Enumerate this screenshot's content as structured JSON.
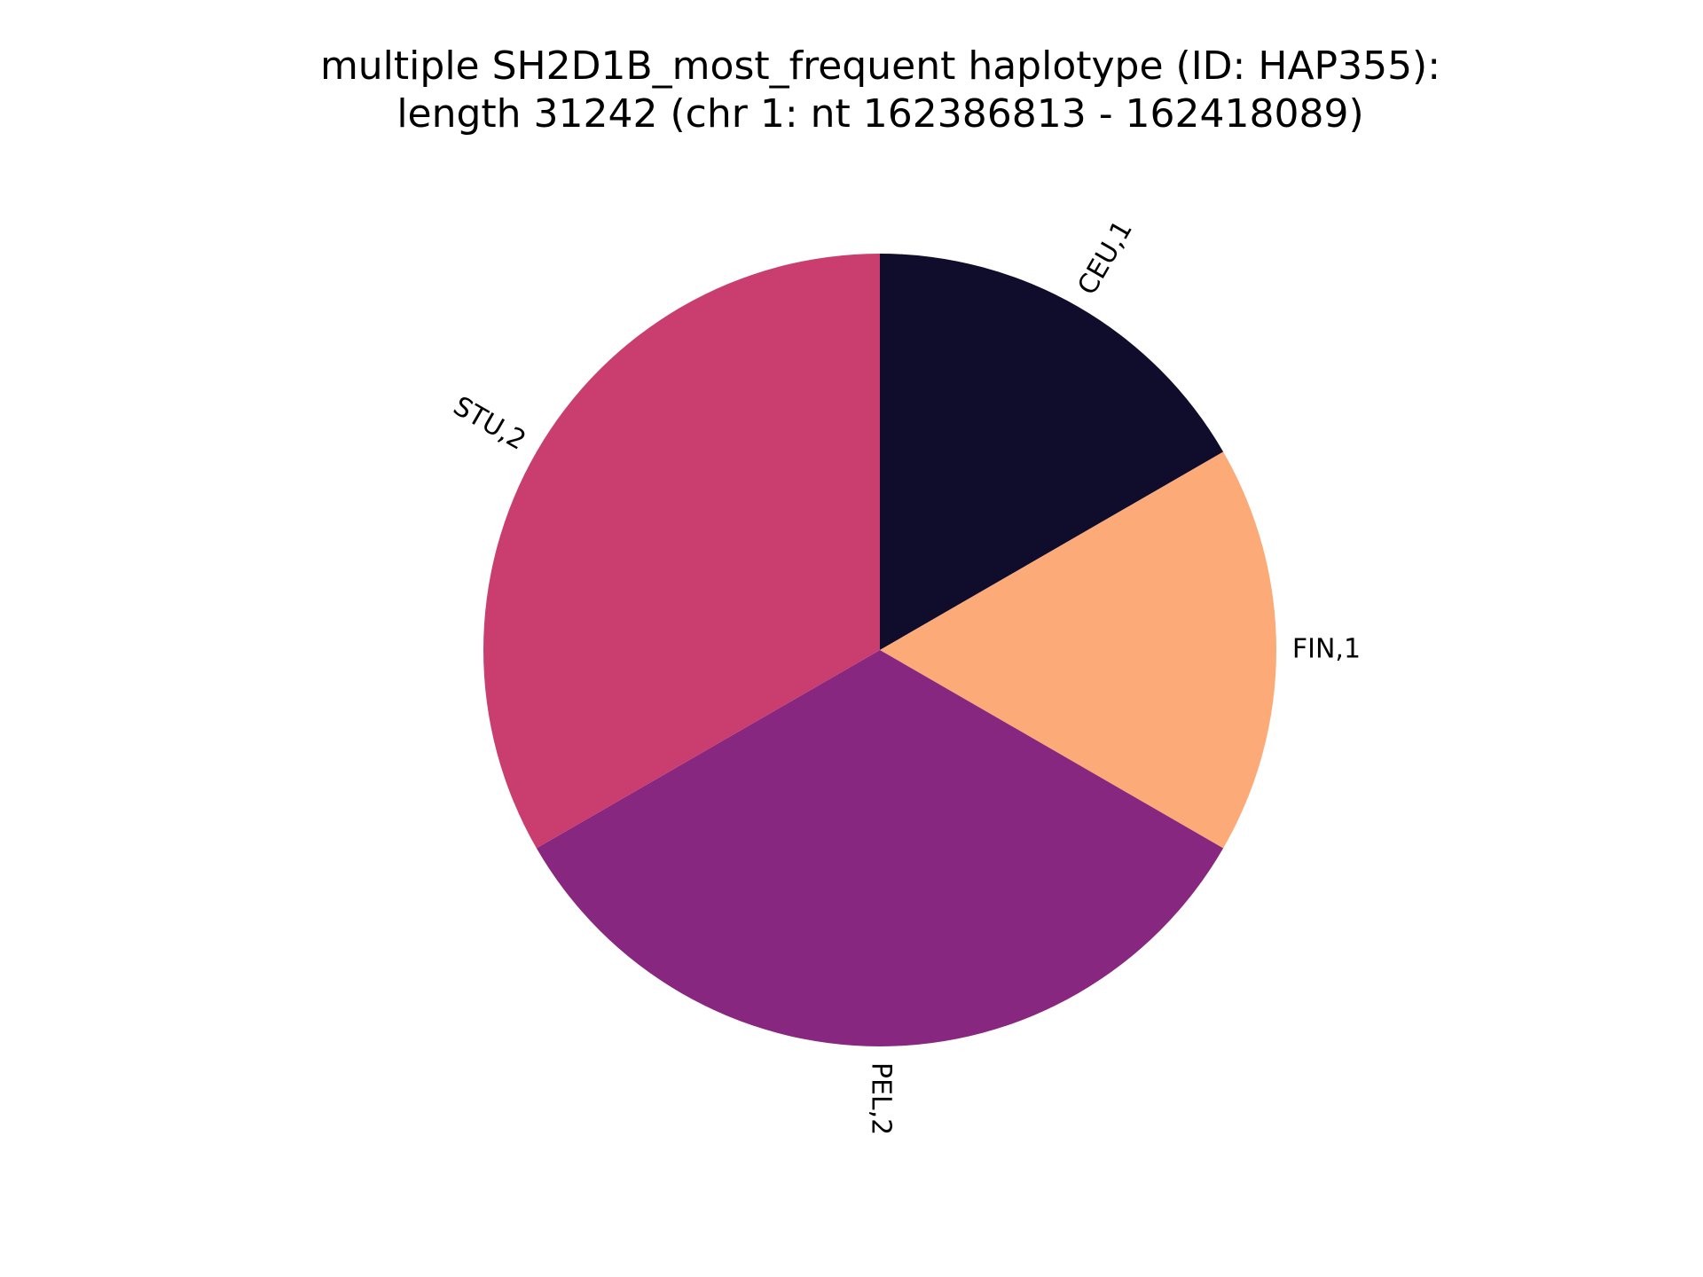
{
  "chart_data": {
    "type": "pie",
    "title_lines": [
      "multiple SH2D1B_most_frequent haplotype (ID: HAP355):",
      "length 31242 (chr 1: nt 162386813 - 162418089)"
    ],
    "slices": [
      {
        "name": "CEU",
        "value": 1,
        "label": "CEU,1",
        "color": "#100c2b"
      },
      {
        "name": "FIN",
        "value": 1,
        "label": "FIN,1",
        "color": "#fcaa78"
      },
      {
        "name": "PEL",
        "value": 2,
        "label": "PEL,2",
        "color": "#872780"
      },
      {
        "name": "STU",
        "value": 2,
        "label": "STU,2",
        "color": "#c93e6e"
      }
    ],
    "start_angle_deg": 90,
    "direction": "clockwise",
    "label_rotation": "radial",
    "legend": "none"
  }
}
